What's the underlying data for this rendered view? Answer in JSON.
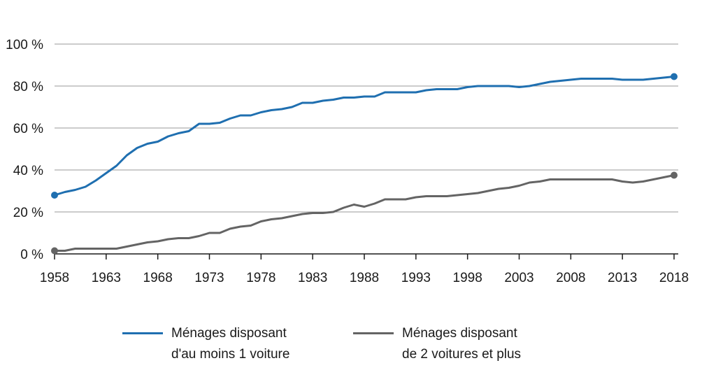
{
  "chart_data": {
    "type": "line",
    "xlim": [
      1958,
      2018
    ],
    "ylim": [
      0,
      100
    ],
    "grid": true,
    "legend_position": "bottom",
    "x_ticks": [
      "1958",
      "1963",
      "1968",
      "1973",
      "1978",
      "1983",
      "1988",
      "1993",
      "1998",
      "2003",
      "2008",
      "2013",
      "2018"
    ],
    "y_ticks": [
      "0 %",
      "20 %",
      "40 %",
      "60 %",
      "80 %",
      "100 %"
    ],
    "y_tick_values": [
      0,
      20,
      40,
      60,
      80,
      100
    ],
    "series": [
      {
        "name_line1": "Ménages disposant",
        "name_line2": "d'au moins 1 voiture",
        "color": "#1f6fb0",
        "x": [
          1958,
          1959,
          1960,
          1961,
          1962,
          1963,
          1964,
          1965,
          1966,
          1967,
          1968,
          1969,
          1970,
          1971,
          1972,
          1973,
          1974,
          1975,
          1976,
          1977,
          1978,
          1979,
          1980,
          1981,
          1982,
          1983,
          1984,
          1985,
          1986,
          1987,
          1988,
          1989,
          1990,
          1991,
          1992,
          1993,
          1994,
          1995,
          1996,
          1997,
          1998,
          1999,
          2000,
          2001,
          2002,
          2003,
          2004,
          2005,
          2006,
          2007,
          2008,
          2009,
          2010,
          2011,
          2012,
          2013,
          2014,
          2015,
          2016,
          2017,
          2018
        ],
        "y": [
          28,
          29.5,
          30.5,
          32,
          35,
          38.5,
          42,
          47,
          50.5,
          52.5,
          53.5,
          56,
          57.5,
          58.5,
          62,
          62,
          62.5,
          64.5,
          66,
          66,
          67.5,
          68.5,
          69,
          70,
          72,
          72,
          73,
          73.5,
          74.5,
          74.5,
          75,
          75,
          77,
          77,
          77,
          77,
          78,
          78.5,
          78.5,
          78.5,
          79.5,
          80,
          80,
          80,
          80,
          79.5,
          80,
          81,
          82,
          82.5,
          83,
          83.5,
          83.5,
          83.5,
          83.5,
          83,
          83,
          83,
          83.5,
          84,
          84.5
        ]
      },
      {
        "name_line1": "Ménages disposant",
        "name_line2": "de 2 voitures et plus",
        "color": "#646464",
        "x": [
          1958,
          1959,
          1960,
          1961,
          1962,
          1963,
          1964,
          1965,
          1966,
          1967,
          1968,
          1969,
          1970,
          1971,
          1972,
          1973,
          1974,
          1975,
          1976,
          1977,
          1978,
          1979,
          1980,
          1981,
          1982,
          1983,
          1984,
          1985,
          1986,
          1987,
          1988,
          1989,
          1990,
          1991,
          1992,
          1993,
          1994,
          1995,
          1996,
          1997,
          1998,
          1999,
          2000,
          2001,
          2002,
          2003,
          2004,
          2005,
          2006,
          2007,
          2008,
          2009,
          2010,
          2011,
          2012,
          2013,
          2014,
          2015,
          2016,
          2017,
          2018
        ],
        "y": [
          1.5,
          1.5,
          2.5,
          2.5,
          2.5,
          2.5,
          2.5,
          3.5,
          4.5,
          5.5,
          6,
          7,
          7.5,
          7.5,
          8.5,
          10,
          10,
          12,
          13,
          13.5,
          15.5,
          16.5,
          17,
          18,
          19,
          19.5,
          19.5,
          20,
          22,
          23.5,
          22.5,
          24,
          26,
          26,
          26,
          27,
          27.5,
          27.5,
          27.5,
          28,
          28.5,
          29,
          30,
          31,
          31.5,
          32.5,
          34,
          34.5,
          35.5,
          35.5,
          35.5,
          35.5,
          35.5,
          35.5,
          35.5,
          34.5,
          34,
          34.5,
          35.5,
          36.5,
          37.5
        ]
      }
    ]
  }
}
